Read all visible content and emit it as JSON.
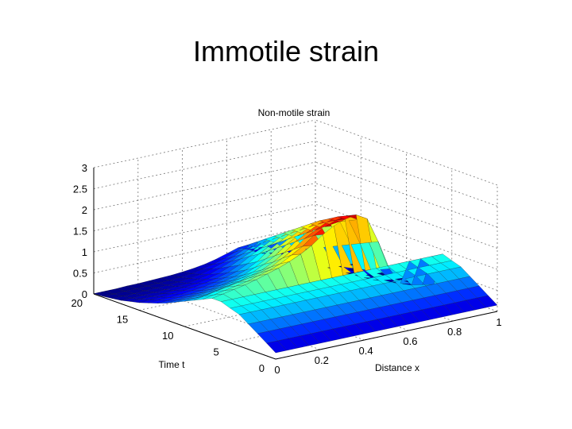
{
  "slide": {
    "title": "Immotile strain"
  },
  "chart_data": {
    "type": "surface",
    "title": "Non-motile strain",
    "xlabel": "Distance x",
    "ylabel": "Time t",
    "zlabel": "",
    "xlim": [
      0,
      1
    ],
    "ylim": [
      0,
      20
    ],
    "zlim": [
      0,
      3
    ],
    "x_ticks": [
      "0",
      "0.2",
      "0.4",
      "0.6",
      "0.8",
      "1"
    ],
    "y_ticks": [
      "0",
      "5",
      "10",
      "15",
      "20"
    ],
    "z_ticks": [
      "0",
      "0.5",
      "1",
      "1.5",
      "2",
      "2.5",
      "3"
    ],
    "grid": true,
    "colormap": "jet",
    "x": [
      0,
      0.05,
      0.1,
      0.15,
      0.2,
      0.25,
      0.3,
      0.35,
      0.4,
      0.45,
      0.5,
      0.55,
      0.6,
      0.65,
      0.7,
      0.75,
      0.8,
      0.85,
      0.9,
      0.95,
      1
    ],
    "t": [
      0,
      1,
      2,
      3,
      4,
      5,
      6,
      7,
      8,
      9,
      10,
      11,
      12,
      13,
      14,
      15,
      16,
      17,
      18,
      19,
      20
    ],
    "z": [
      [
        0.15,
        0.15,
        0.15,
        0.15,
        0.15,
        0.15,
        0.15,
        0.15,
        0.15,
        0.15,
        0.15,
        0.15,
        0.15,
        0.15,
        0.15,
        0.15,
        0.15,
        0.15,
        0.15,
        0.15,
        0.15
      ],
      [
        0.3,
        0.3,
        0.3,
        0.3,
        0.3,
        0.3,
        0.3,
        0.3,
        0.3,
        0.3,
        0.3,
        0.3,
        0.3,
        0.3,
        0.3,
        0.3,
        0.3,
        0.3,
        0.3,
        0.3,
        0.3
      ],
      [
        0.45,
        0.45,
        0.45,
        0.45,
        0.45,
        0.45,
        0.45,
        0.45,
        0.45,
        0.45,
        0.45,
        0.45,
        0.45,
        0.45,
        0.45,
        0.45,
        0.45,
        0.45,
        0.45,
        0.45,
        0.45
      ],
      [
        0.6,
        0.6,
        0.6,
        0.6,
        0.6,
        0.6,
        0.6,
        0.6,
        0.6,
        0.6,
        0.6,
        0.6,
        0.6,
        0.6,
        0.6,
        0.6,
        0.6,
        0.6,
        0.6,
        0.6,
        0.6
      ],
      [
        0.75,
        0.75,
        0.75,
        0.75,
        0.75,
        0.75,
        0.75,
        0.75,
        0.75,
        0.75,
        0.75,
        0.75,
        0.75,
        0.75,
        0.75,
        0.75,
        0.75,
        0.75,
        0.75,
        0.75,
        0.75
      ],
      [
        0.82,
        0.82,
        0.82,
        0.82,
        0.82,
        0.82,
        0.82,
        0.82,
        0.82,
        0.82,
        0.82,
        0.82,
        0.82,
        0.82,
        0.82,
        0.82,
        0.82,
        0.82,
        0.82,
        0.82,
        0.82
      ],
      [
        0.9,
        0.9,
        0.9,
        0.9,
        0.9,
        0.9,
        0.9,
        0.9,
        0.9,
        0.9,
        0.9,
        0.9,
        0.9,
        0.9,
        0.9,
        0.9,
        0.9,
        0.9,
        0.9,
        0.9,
        0.9
      ],
      [
        0.9,
        0.95,
        1.0,
        1.05,
        1.12,
        1.2,
        1.28,
        1.38,
        1.5,
        1.65,
        1.85,
        2.0,
        2.1,
        2.15,
        2.0,
        1.4,
        0.7,
        0.3,
        0.2,
        0.15,
        0.1
      ],
      [
        0.8,
        0.85,
        0.9,
        0.95,
        1.0,
        1.08,
        1.15,
        1.25,
        1.4,
        1.55,
        1.75,
        1.9,
        2.0,
        2.05,
        1.9,
        1.3,
        0.6,
        0.25,
        0.15,
        0.1,
        0.05
      ],
      [
        0.7,
        0.75,
        0.8,
        0.85,
        0.9,
        0.95,
        1.02,
        1.1,
        1.25,
        1.4,
        1.6,
        1.75,
        1.88,
        1.95,
        1.8,
        1.2,
        0.5,
        0.2,
        0.1,
        0.08,
        0.05
      ],
      [
        0.6,
        0.62,
        0.65,
        0.7,
        0.75,
        0.8,
        0.88,
        0.95,
        1.08,
        1.25,
        1.45,
        1.6,
        1.75,
        1.82,
        1.7,
        1.1,
        0.45,
        0.15,
        0.08,
        0.05,
        0.03
      ],
      [
        0.5,
        0.52,
        0.55,
        0.58,
        0.62,
        0.68,
        0.74,
        0.82,
        0.95,
        1.1,
        1.3,
        1.45,
        1.6,
        1.7,
        1.55,
        1.0,
        0.4,
        0.12,
        0.06,
        0.04,
        0.02
      ],
      [
        0.4,
        0.42,
        0.44,
        0.47,
        0.5,
        0.55,
        0.6,
        0.68,
        0.8,
        0.95,
        1.15,
        1.3,
        1.45,
        1.55,
        1.4,
        0.9,
        0.35,
        0.1,
        0.05,
        0.03,
        0.02
      ],
      [
        0.32,
        0.33,
        0.35,
        0.37,
        0.4,
        0.44,
        0.5,
        0.56,
        0.66,
        0.8,
        1.0,
        1.15,
        1.3,
        1.4,
        1.25,
        0.8,
        0.3,
        0.08,
        0.04,
        0.02,
        0.01
      ],
      [
        0.25,
        0.26,
        0.27,
        0.29,
        0.32,
        0.35,
        0.4,
        0.46,
        0.55,
        0.68,
        0.85,
        1.0,
        1.15,
        1.25,
        1.1,
        0.7,
        0.25,
        0.06,
        0.03,
        0.02,
        0.01
      ],
      [
        0.18,
        0.19,
        0.2,
        0.22,
        0.24,
        0.27,
        0.31,
        0.36,
        0.44,
        0.56,
        0.72,
        0.85,
        1.0,
        1.1,
        0.95,
        0.6,
        0.2,
        0.05,
        0.02,
        0.01,
        0.01
      ],
      [
        0.13,
        0.13,
        0.14,
        0.15,
        0.17,
        0.19,
        0.22,
        0.27,
        0.34,
        0.45,
        0.58,
        0.7,
        0.85,
        0.95,
        0.8,
        0.5,
        0.15,
        0.04,
        0.02,
        0.01,
        0
      ],
      [
        0.08,
        0.08,
        0.09,
        0.1,
        0.11,
        0.13,
        0.15,
        0.19,
        0.25,
        0.34,
        0.45,
        0.56,
        0.7,
        0.8,
        0.65,
        0.4,
        0.12,
        0.03,
        0.01,
        0,
        0
      ],
      [
        0.05,
        0.05,
        0.05,
        0.06,
        0.07,
        0.08,
        0.1,
        0.13,
        0.17,
        0.24,
        0.33,
        0.42,
        0.55,
        0.65,
        0.5,
        0.3,
        0.08,
        0.02,
        0.01,
        0,
        0
      ],
      [
        0.02,
        0.02,
        0.03,
        0.03,
        0.04,
        0.05,
        0.06,
        0.08,
        0.11,
        0.16,
        0.22,
        0.3,
        0.4,
        0.5,
        0.38,
        0.2,
        0.05,
        0.01,
        0,
        0,
        0
      ],
      [
        0.01,
        0.01,
        0.01,
        0.02,
        0.02,
        0.03,
        0.04,
        0.05,
        0.07,
        0.1,
        0.14,
        0.2,
        0.28,
        0.36,
        0.26,
        0.12,
        0.03,
        0.01,
        0,
        0,
        0
      ]
    ]
  }
}
